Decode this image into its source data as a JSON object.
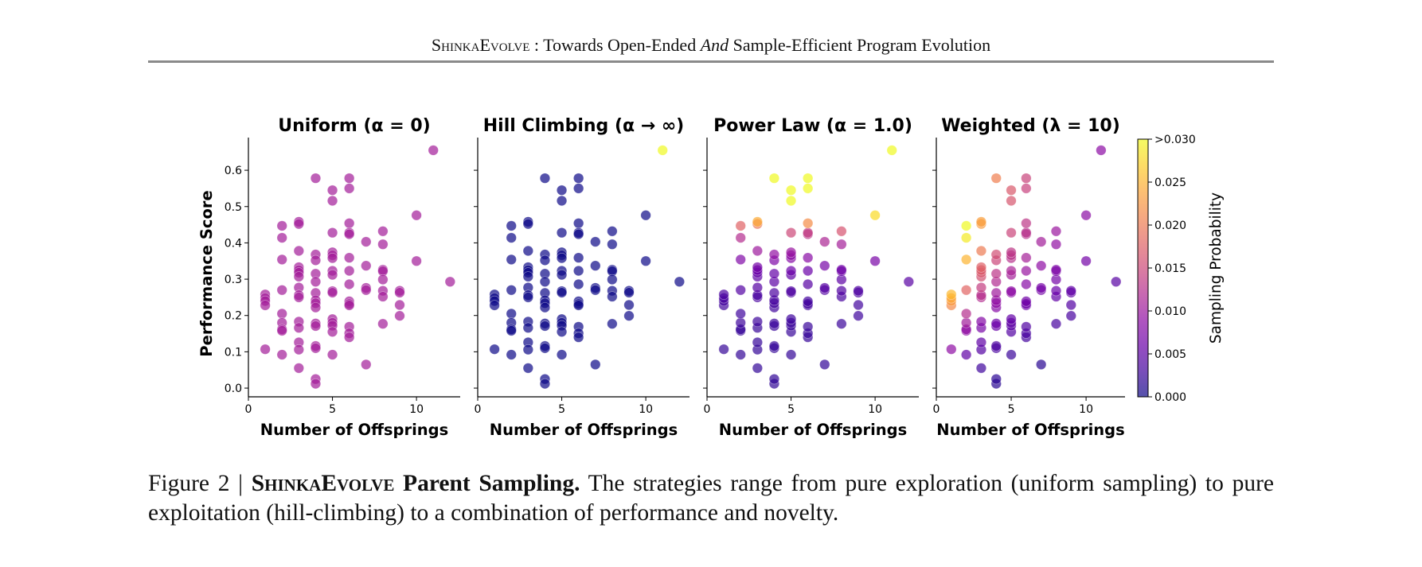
{
  "header": {
    "brand": "ShinkaEvolve",
    "part1": " : Towards Open-Ended ",
    "italic": "And",
    "part2": " Sample-Efficient Program Evolution"
  },
  "caption": {
    "label": "Figure 2 | ",
    "bold_brand": "ShinkaEvolve",
    "bold_rest": " Parent Sampling.",
    "text": " The strategies range from pure exploration (uniform sampling) to pure exploitation (hill-climbing) to a combination of performance and novelty."
  },
  "chart_data": {
    "type": "scatter",
    "xlabel": "Number of Offsprings",
    "ylabel": "Performance Score",
    "xlim": [
      0,
      12.6
    ],
    "ylim": [
      -0.024,
      0.69
    ],
    "xticks": [
      "0",
      "5",
      "10"
    ],
    "yticks": [
      "0.0",
      "0.1",
      "0.2",
      "0.3",
      "0.4",
      "0.5",
      "0.6"
    ],
    "colormap": "plasma",
    "marker_alpha": 0.7,
    "colorbar": {
      "label": "Sampling Probability",
      "range": [
        0,
        0.03
      ],
      "ticks": [
        "0.000",
        "0.005",
        "0.010",
        "0.015",
        "0.020",
        "0.025",
        ">0.030"
      ]
    },
    "panels": [
      {
        "title": "Uniform (α = 0)",
        "strategy": "uniform"
      },
      {
        "title": "Hill Climbing (α → ∞)",
        "strategy": "hill_climbing"
      },
      {
        "title": "Power Law (α = 1.0)",
        "strategy": "power_law",
        "alpha": 1.0
      },
      {
        "title": "Weighted (λ = 10)",
        "strategy": "weighted",
        "lambda": 10
      }
    ],
    "points": [
      {
        "x": 1,
        "y": [
          0.258,
          0.248,
          0.24,
          0.228,
          0.107
        ]
      },
      {
        "x": 2,
        "y": [
          0.447,
          0.414,
          0.354,
          0.27,
          0.205,
          0.18,
          0.162,
          0.158,
          0.092
        ]
      },
      {
        "x": 3,
        "y": [
          0.458,
          0.452,
          0.378,
          0.333,
          0.325,
          0.318,
          0.307,
          0.277,
          0.256,
          0.25,
          0.183,
          0.166,
          0.126,
          0.106,
          0.055
        ]
      },
      {
        "x": 4,
        "y": [
          0.578,
          0.368,
          0.352,
          0.315,
          0.293,
          0.262,
          0.242,
          0.234,
          0.222,
          0.178,
          0.171,
          0.116,
          0.11,
          0.025,
          0.012
        ]
      },
      {
        "x": 5,
        "y": [
          0.545,
          0.516,
          0.428,
          0.374,
          0.366,
          0.358,
          0.323,
          0.312,
          0.267,
          0.263,
          0.19,
          0.18,
          0.172,
          0.155,
          0.092
        ]
      },
      {
        "x": 6,
        "y": [
          0.578,
          0.55,
          0.454,
          0.428,
          0.424,
          0.359,
          0.323,
          0.286,
          0.239,
          0.232,
          0.228,
          0.169,
          0.151,
          0.14
        ]
      },
      {
        "x": 7,
        "y": [
          0.403,
          0.337,
          0.276,
          0.27,
          0.065
        ]
      },
      {
        "x": 8,
        "y": [
          0.432,
          0.396,
          0.326,
          0.322,
          0.299,
          0.268,
          0.252,
          0.177
        ]
      },
      {
        "x": 9,
        "y": [
          0.268,
          0.263,
          0.229,
          0.199
        ]
      },
      {
        "x": 10,
        "y": [
          0.476,
          0.35
        ]
      },
      {
        "x": 11,
        "y": [
          0.655
        ]
      },
      {
        "x": 12,
        "y": [
          0.293
        ]
      }
    ]
  }
}
